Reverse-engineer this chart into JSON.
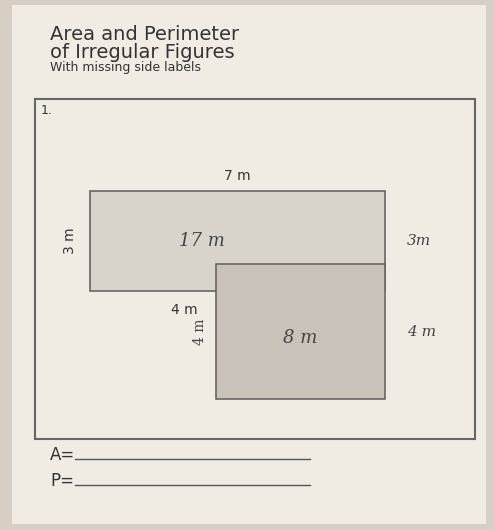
{
  "title_line1": "Area and Perimeter",
  "title_line2": "of Irregular Figures",
  "subtitle": "With missing side labels",
  "figure_number": "1.",
  "label_7m": "7 m",
  "label_3m_left": "3 m",
  "label_17m": "17 m",
  "label_3m_right": "3m",
  "label_4m_bottom_left": "4 m",
  "label_4m_rotated": "4 m",
  "label_4m_right": "4 m",
  "label_8m": "8 m",
  "A_label": "A=",
  "P_label": "P=",
  "bg_outer": "#d8cfc4",
  "bg_page": "#f0ece4",
  "top_rect_fill": "#d8d4cc",
  "bot_rect_fill": "#c8c2b8",
  "border_color": "#666666",
  "text_color": "#333333",
  "line_color": "#555555",
  "title_fontsize": 14,
  "subtitle_fontsize": 9,
  "label_fontsize": 10,
  "hand_fontsize": 11
}
